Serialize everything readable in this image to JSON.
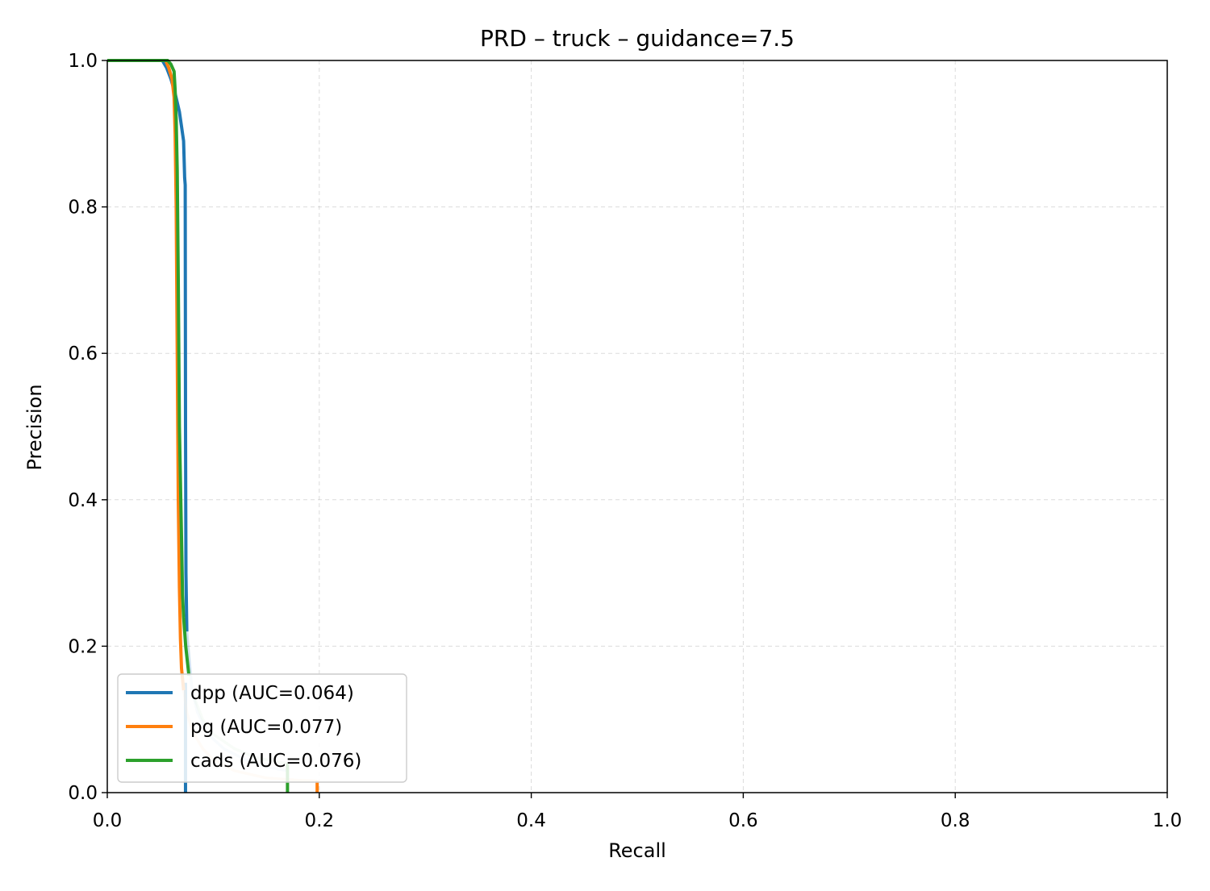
{
  "chart_data": {
    "type": "line",
    "title": "PRD – truck – guidance=7.5",
    "xlabel": "Recall",
    "ylabel": "Precision",
    "xlim": [
      0,
      1
    ],
    "ylim": [
      0,
      1
    ],
    "xticks": [
      "0.0",
      "0.2",
      "0.4",
      "0.6",
      "0.8",
      "1.0"
    ],
    "yticks": [
      "0.0",
      "0.2",
      "0.4",
      "0.6",
      "0.8",
      "1.0"
    ],
    "grid": true,
    "legend_position": "lower-left",
    "series": [
      {
        "name": "dpp (AUC=0.064)",
        "color": "#1f77b4",
        "x": [
          0,
          0.052,
          0.056,
          0.06,
          0.064,
          0.068,
          0.07,
          0.072,
          0.073,
          0.0735,
          0.0738,
          0.0742,
          0.075,
          0.078,
          0.08,
          0.085,
          0.095,
          0.11,
          0.13,
          0.15,
          0.17,
          0.17
        ],
        "y": [
          1.0,
          1.0,
          0.99,
          0.975,
          0.955,
          0.93,
          0.91,
          0.89,
          0.84,
          0.83,
          0.5,
          0.3,
          0.22,
          0.17,
          0.14,
          0.11,
          0.08,
          0.06,
          0.045,
          0.035,
          0.03,
          0.0
        ],
        "fade_after_x": 0.075,
        "drop_x": 0.0738
      },
      {
        "name": "pg (AUC=0.077)",
        "color": "#ff7f0e",
        "x": [
          0,
          0.055,
          0.058,
          0.061,
          0.063,
          0.064,
          0.065,
          0.066,
          0.067,
          0.068,
          0.069,
          0.07,
          0.072,
          0.075,
          0.08,
          0.09,
          0.1,
          0.12,
          0.15,
          0.18,
          0.197,
          0.198,
          0.198
        ],
        "y": [
          1.0,
          1.0,
          0.99,
          0.975,
          0.95,
          0.9,
          0.8,
          0.6,
          0.4,
          0.28,
          0.21,
          0.17,
          0.14,
          0.11,
          0.085,
          0.06,
          0.045,
          0.03,
          0.02,
          0.017,
          0.016,
          0.016,
          0.0
        ],
        "fade_after_x": 0.072,
        "drop_x": 0.198
      },
      {
        "name": "cads (AUC=0.076)",
        "color": "#2ca02c",
        "x": [
          0,
          0.057,
          0.06,
          0.063,
          0.064,
          0.065,
          0.066,
          0.067,
          0.068,
          0.07,
          0.071,
          0.072,
          0.074,
          0.077,
          0.082,
          0.09,
          0.1,
          0.12,
          0.14,
          0.16,
          0.169,
          0.17,
          0.17
        ],
        "y": [
          1.0,
          1.0,
          0.995,
          0.985,
          0.96,
          0.92,
          0.85,
          0.7,
          0.5,
          0.35,
          0.27,
          0.24,
          0.2,
          0.16,
          0.13,
          0.1,
          0.08,
          0.06,
          0.048,
          0.042,
          0.04,
          0.04,
          0.0
        ],
        "fade_after_x": 0.08,
        "drop_x": 0.17
      }
    ]
  }
}
